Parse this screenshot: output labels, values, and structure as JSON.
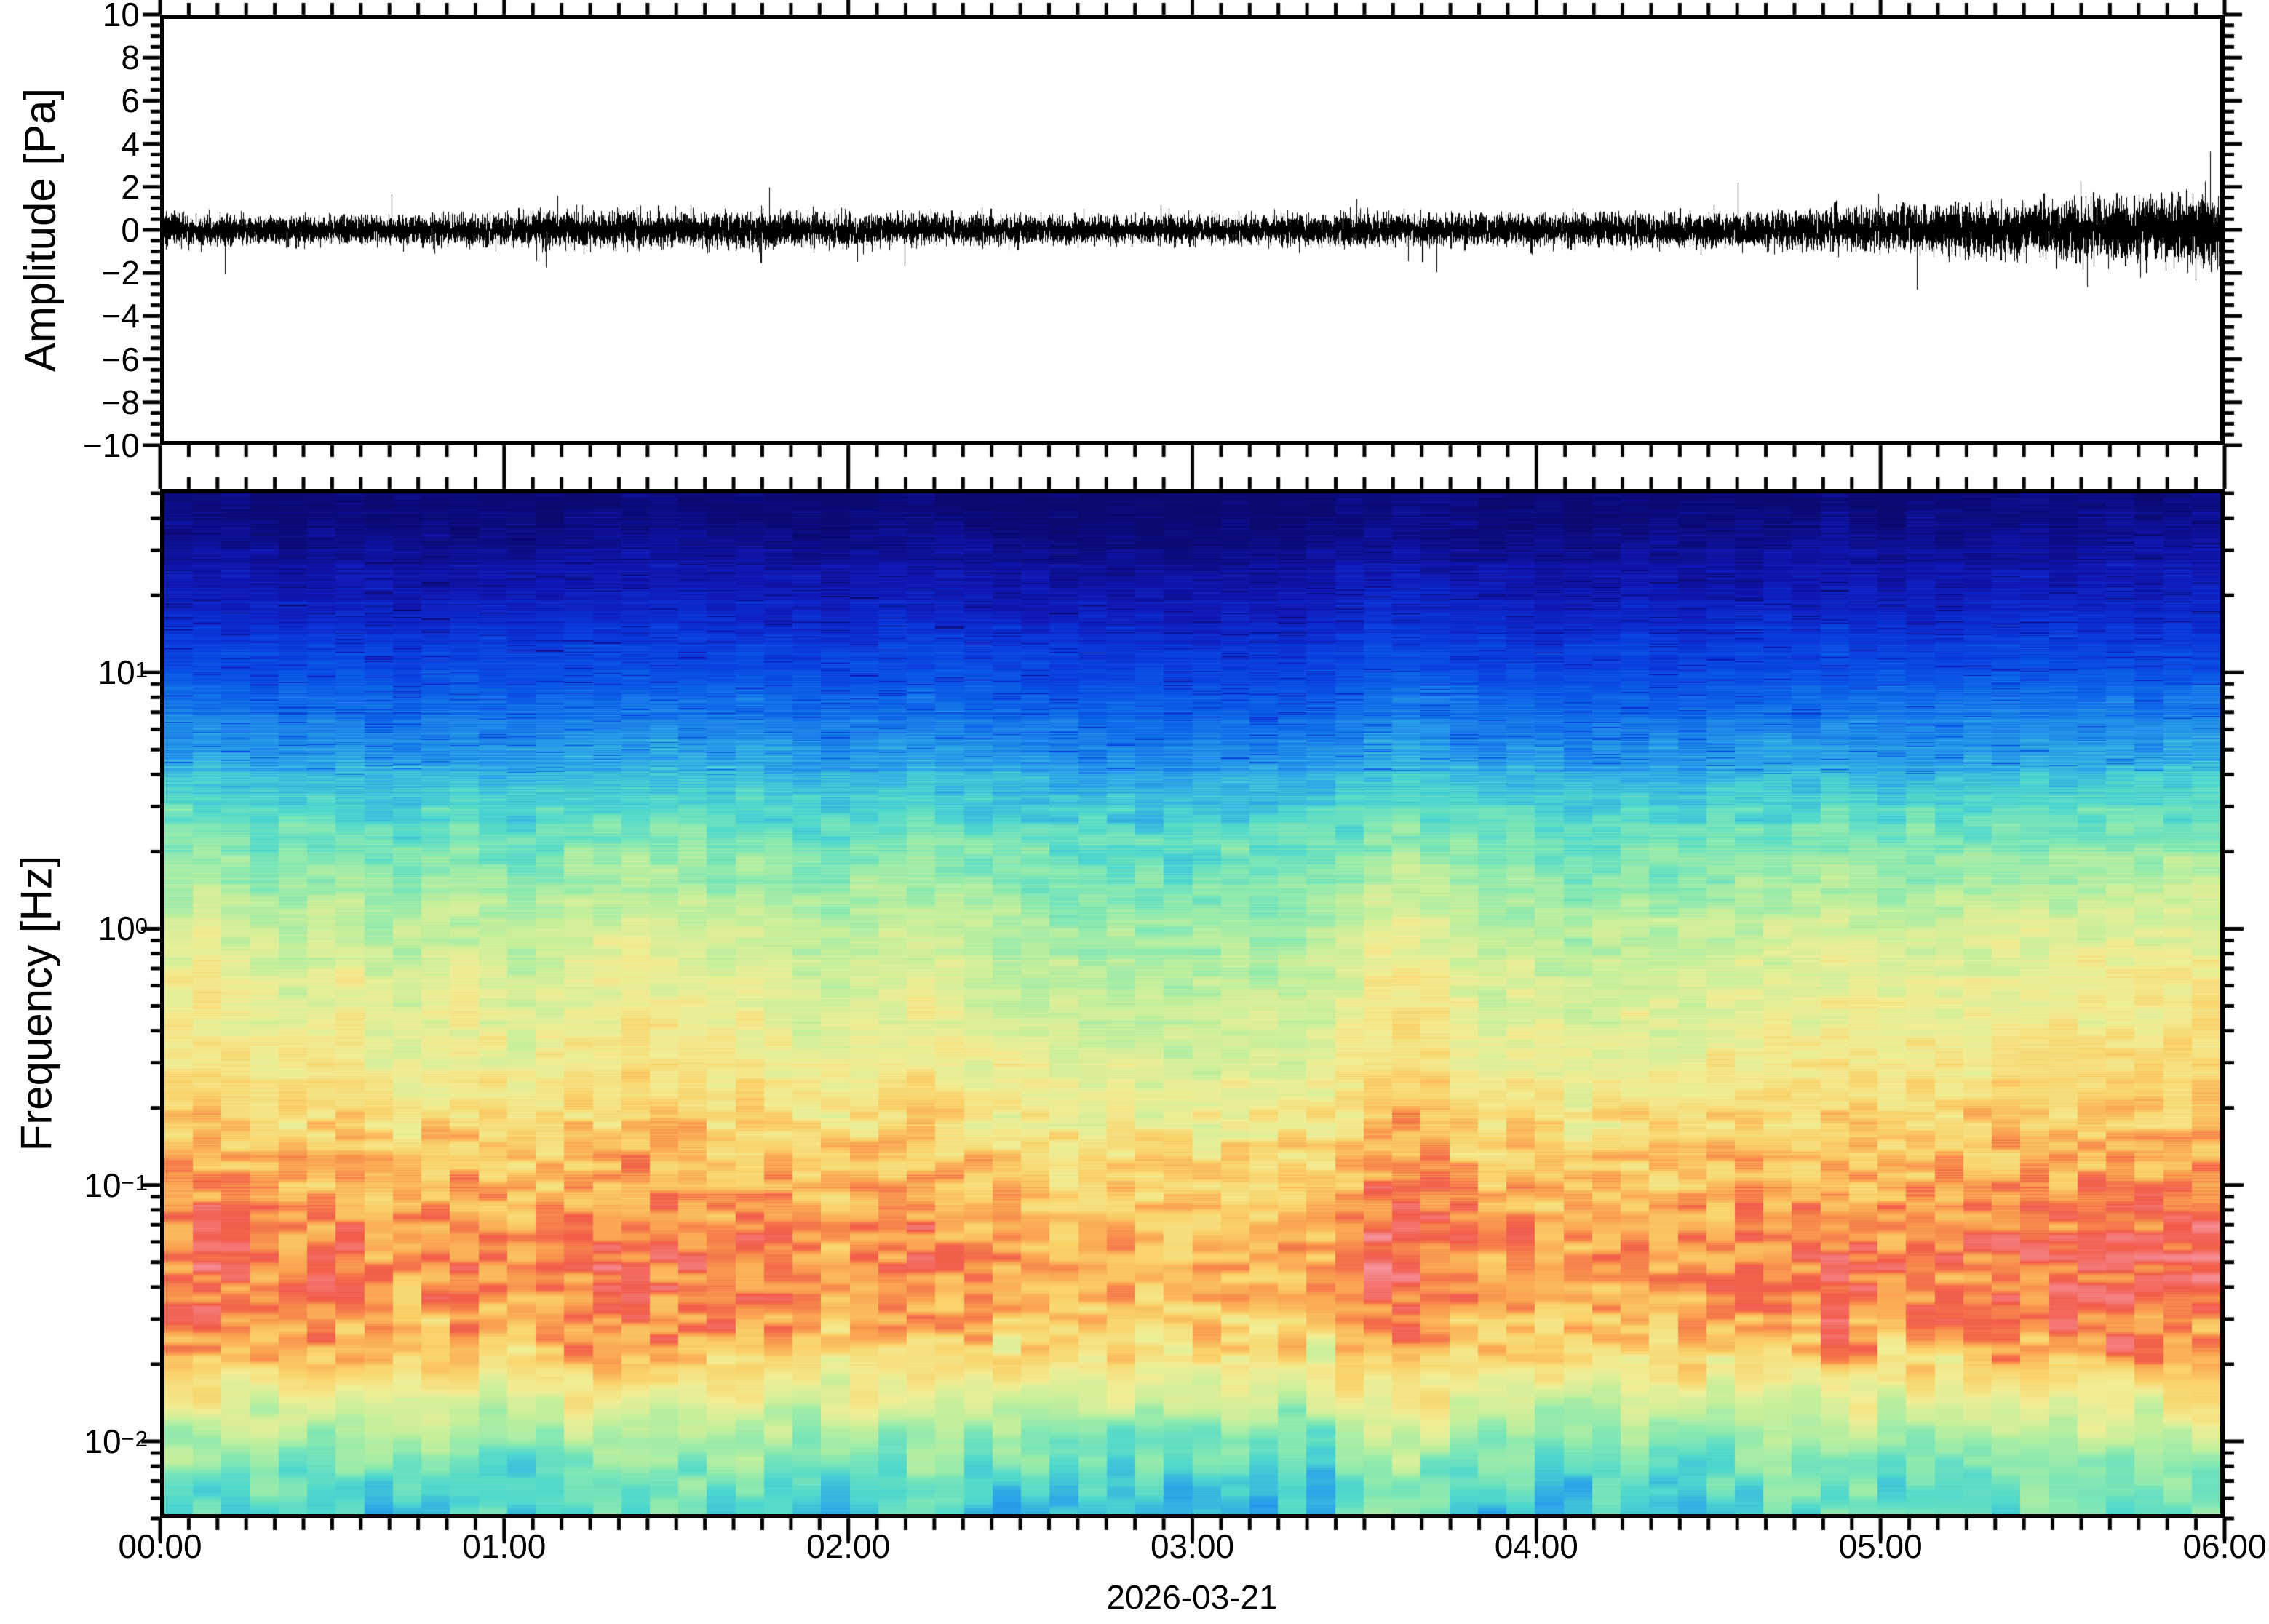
{
  "figure": {
    "background": "#ffffff",
    "frame_color": "#000000"
  },
  "chart_data": [
    {
      "type": "line",
      "name": "pressure-waveform",
      "ylabel": "Amplitude [Pa]",
      "ylim": [
        -10,
        10
      ],
      "y_major_step": 2,
      "y_minor_step": 0.5,
      "y_tick_labels": [
        "10",
        "8",
        "6",
        "4",
        "2",
        "0",
        "−2",
        "−4",
        "−6",
        "−8",
        "−10"
      ],
      "y_tick_values": [
        10,
        8,
        6,
        4,
        2,
        0,
        -2,
        -4,
        -6,
        -8,
        -10
      ],
      "x_range_hours": [
        0,
        6
      ],
      "x_minor_minutes": 5,
      "line_color": "#000000",
      "noise_seed": 7,
      "samples_per_pixel": 7,
      "spike_probability": 0.006,
      "spike_gain": 2.4,
      "envelope_hours": [
        0,
        0.25,
        0.5,
        0.75,
        1,
        1.25,
        1.5,
        1.75,
        2,
        2.25,
        2.5,
        2.75,
        3,
        3.25,
        3.5,
        3.75,
        4,
        4.25,
        4.5,
        4.75,
        5,
        5.25,
        5.5,
        5.75,
        6
      ],
      "envelope_rms_pa": [
        0.38,
        0.33,
        0.32,
        0.34,
        0.36,
        0.4,
        0.4,
        0.38,
        0.36,
        0.34,
        0.32,
        0.3,
        0.3,
        0.33,
        0.36,
        0.34,
        0.37,
        0.36,
        0.38,
        0.42,
        0.48,
        0.55,
        0.62,
        0.72,
        0.85
      ]
    },
    {
      "type": "heatmap",
      "name": "spectrogram",
      "ylabel": "Frequency [Hz]",
      "x_date_label": "2026-03-21",
      "x_tick_labels": [
        "00:00",
        "01:00",
        "02:00",
        "03:00",
        "04:00",
        "05:00",
        "06:00"
      ],
      "x_tick_hours": [
        0,
        1,
        2,
        3,
        4,
        5,
        6
      ],
      "x_minor_minutes": 5,
      "freq_min_hz": 0.005,
      "freq_max_hz": 52,
      "freq_tick_labels": [
        {
          "base": "10",
          "exp": "1",
          "value": 1
        },
        {
          "base": "10",
          "exp": "0",
          "value": 0
        },
        {
          "base": "10",
          "exp": "−1",
          "value": -1
        },
        {
          "base": "10",
          "exp": "−2",
          "value": -2
        }
      ],
      "time_bins": 72,
      "colormap_stops": [
        [
          0.0,
          "#0a0a6e"
        ],
        [
          0.1,
          "#1216b4"
        ],
        [
          0.2,
          "#0a3ce0"
        ],
        [
          0.3,
          "#0c66e8"
        ],
        [
          0.4,
          "#2ca2ea"
        ],
        [
          0.48,
          "#4cd8cf"
        ],
        [
          0.56,
          "#8ceab0"
        ],
        [
          0.64,
          "#c8f09c"
        ],
        [
          0.72,
          "#f2ee96"
        ],
        [
          0.8,
          "#fbd268"
        ],
        [
          0.87,
          "#faa050"
        ],
        [
          0.93,
          "#f25b49"
        ],
        [
          1.0,
          "#f7919b"
        ]
      ],
      "power_profile_log10hz_vs_level": [
        [
          -2.3,
          0.46
        ],
        [
          -2.15,
          0.5
        ],
        [
          -2.0,
          0.57
        ],
        [
          -1.85,
          0.66
        ],
        [
          -1.7,
          0.76
        ],
        [
          -1.55,
          0.83
        ],
        [
          -1.4,
          0.87
        ],
        [
          -1.2,
          0.87
        ],
        [
          -1.0,
          0.82
        ],
        [
          -0.7,
          0.75
        ],
        [
          -0.5,
          0.71
        ],
        [
          -0.3,
          0.68
        ],
        [
          0.0,
          0.63
        ],
        [
          0.3,
          0.54
        ],
        [
          0.5,
          0.47
        ],
        [
          0.7,
          0.38
        ],
        [
          1.0,
          0.24
        ],
        [
          1.3,
          0.11
        ],
        [
          1.5,
          0.05
        ],
        [
          1.6,
          0.02
        ],
        [
          1.716,
          0.0
        ]
      ],
      "column_boost": [
        0.04,
        0.05,
        0.03,
        0.02,
        0.01,
        0.02,
        0.03,
        0.0,
        -0.01,
        0.01,
        0.02,
        0.0,
        -0.01,
        0.01,
        0.03,
        0.04,
        0.05,
        0.04,
        0.03,
        0.02,
        0.03,
        0.02,
        0.0,
        -0.01,
        0.01,
        0.02,
        0.03,
        0.01,
        0.0,
        -0.01,
        -0.02,
        -0.03,
        -0.04,
        -0.03,
        -0.04,
        -0.05,
        -0.04,
        -0.03,
        -0.04,
        -0.03,
        -0.02,
        0.02,
        0.06,
        0.07,
        0.05,
        0.02,
        0.0,
        0.01,
        -0.01,
        -0.02,
        -0.01,
        0.0,
        -0.01,
        0.0,
        0.01,
        0.02,
        0.03,
        0.02,
        0.04,
        0.03,
        0.02,
        0.03,
        0.02,
        0.03,
        0.04,
        0.05,
        0.04,
        0.05,
        0.06,
        0.05,
        0.06,
        0.07
      ],
      "noise": {
        "seed": 11,
        "fine_amp_high": 0.055,
        "fine_amp_mid": 0.035,
        "fine_amp_low": 0.012,
        "streak_amp_microbarom": 0.07,
        "smooth_amp_bottom": 0.06,
        "dark_spike_depth": 0.13
      }
    }
  ]
}
